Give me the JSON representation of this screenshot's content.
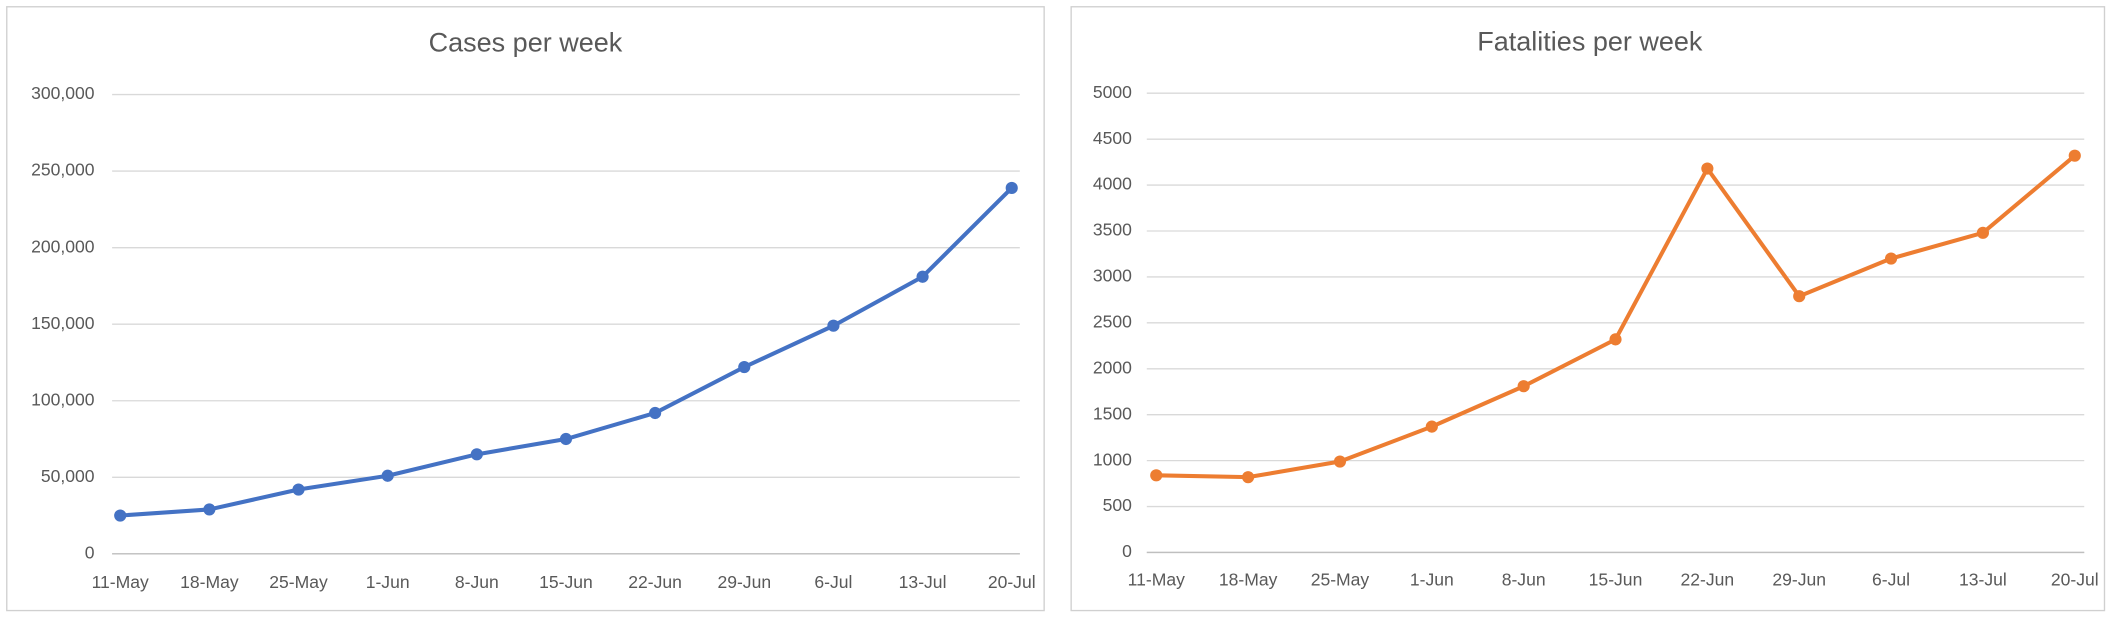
{
  "chart_data": [
    {
      "type": "line",
      "title": "Cases per week",
      "categories": [
        "11-May",
        "18-May",
        "25-May",
        "1-Jun",
        "8-Jun",
        "15-Jun",
        "22-Jun",
        "29-Jun",
        "6-Jul",
        "13-Jul",
        "20-Jul"
      ],
      "values": [
        25000,
        29000,
        42000,
        51000,
        65000,
        75000,
        92000,
        122000,
        149000,
        181000,
        239000
      ],
      "color": "#4472c4",
      "ylim": [
        0,
        300000
      ],
      "yticks": [
        0,
        {
          "value": 50000,
          "label": "50,000"
        },
        {
          "value": 100000,
          "label": "100,000"
        },
        {
          "value": 150000,
          "label": "150,000"
        },
        {
          "value": 200000,
          "label": "200,000"
        },
        {
          "value": 250000,
          "label": "250,000"
        },
        {
          "value": 300000,
          "label": "300,000"
        }
      ],
      "grid": true
    },
    {
      "type": "line",
      "title": "Fatalities per week",
      "categories": [
        "11-May",
        "18-May",
        "25-May",
        "1-Jun",
        "8-Jun",
        "15-Jun",
        "22-Jun",
        "29-Jun",
        "6-Jul",
        "13-Jul",
        "20-Jul"
      ],
      "values": [
        840,
        820,
        990,
        1370,
        1810,
        2320,
        4180,
        2790,
        3200,
        3480,
        4320
      ],
      "color": "#ed7d31",
      "ylim": [
        0,
        5000
      ],
      "yticks": [
        0,
        500,
        1000,
        1500,
        2000,
        2500,
        3000,
        3500,
        4000,
        4500,
        5000
      ],
      "grid": true
    }
  ]
}
